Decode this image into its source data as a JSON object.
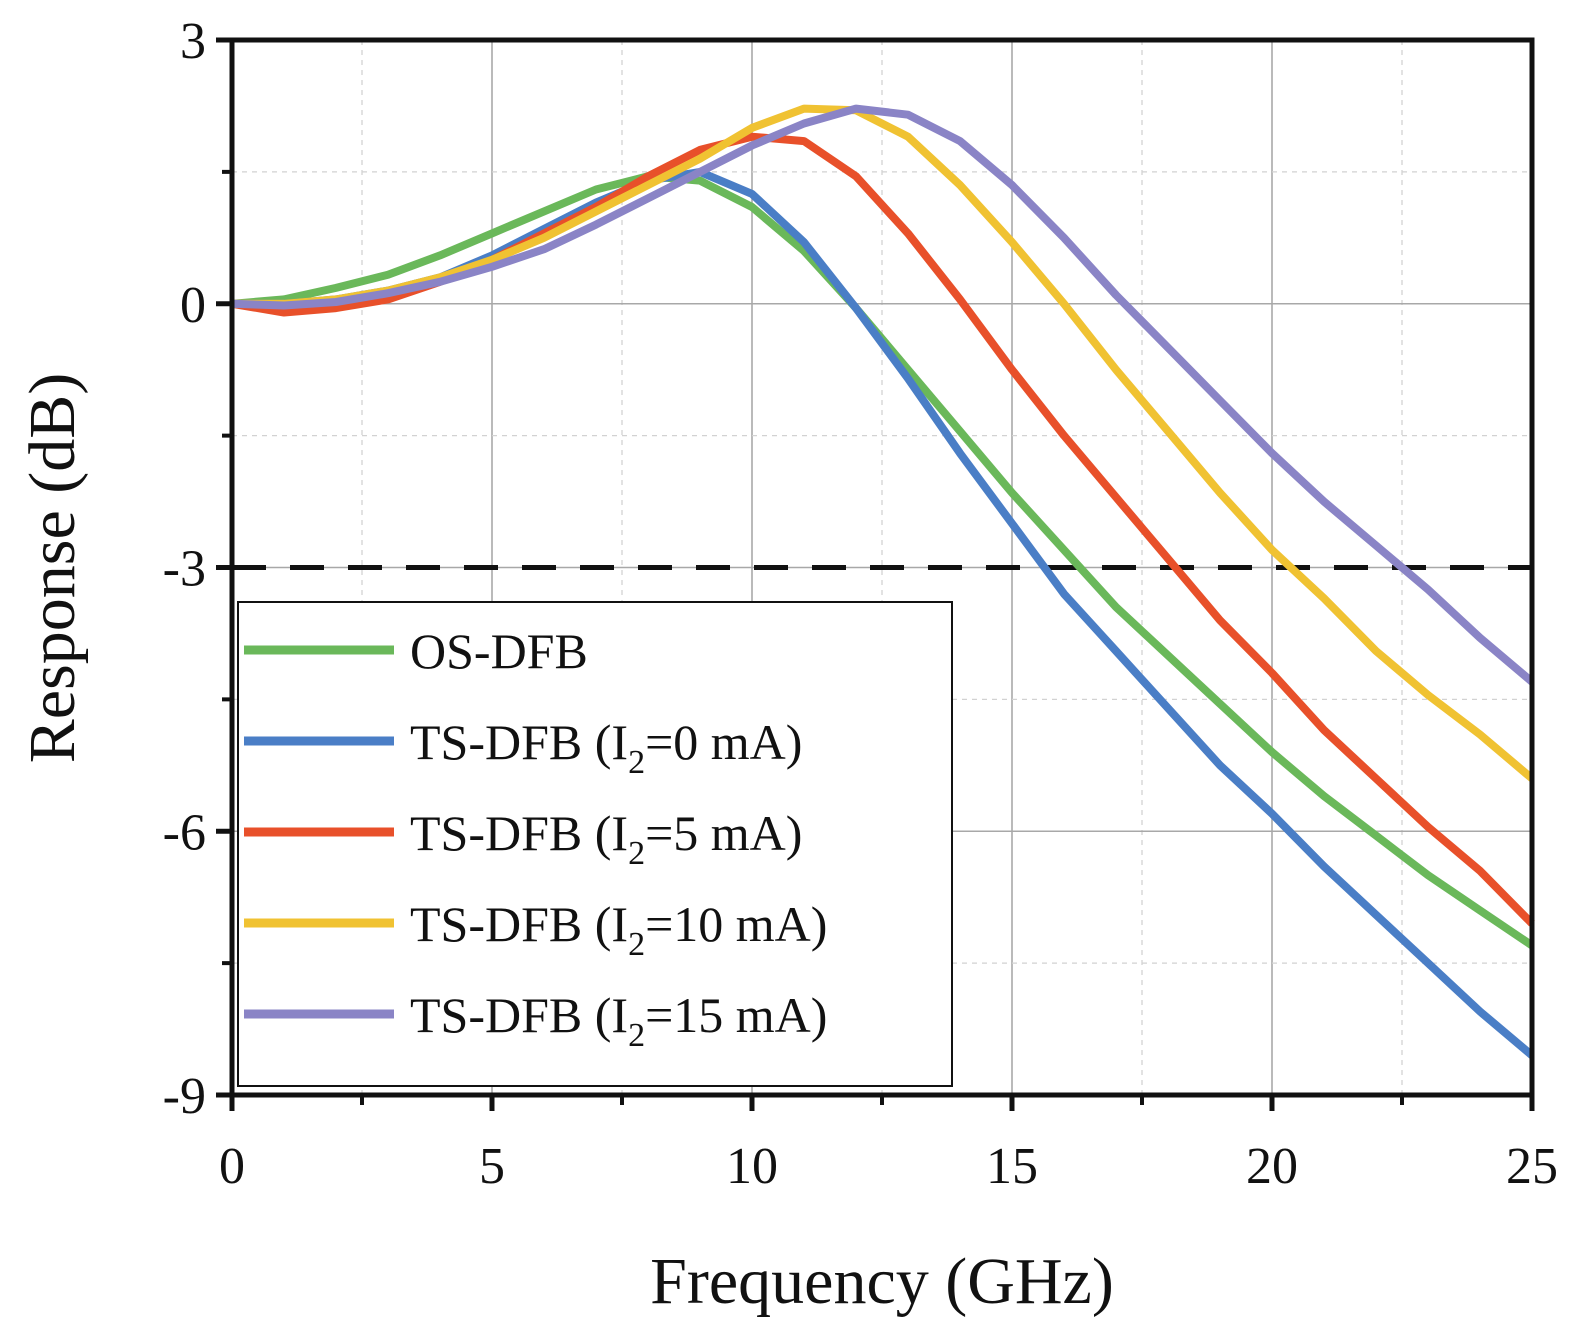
{
  "chart_data": {
    "type": "line",
    "title": "",
    "xlabel": "Frequency (GHz)",
    "ylabel": "Response (dB)",
    "xlim": [
      0,
      25
    ],
    "ylim": [
      -9,
      3
    ],
    "x_ticks": [
      0,
      5,
      10,
      15,
      20,
      25
    ],
    "y_ticks": [
      3,
      0,
      -3,
      -6,
      -9
    ],
    "x_tick_labels": [
      "0",
      "5",
      "10",
      "15",
      "20",
      "25"
    ],
    "y_tick_labels": [
      "3",
      "0",
      "-3",
      "-6",
      "-9"
    ],
    "grid": true,
    "reference_line": {
      "y": -3,
      "style": "dashed",
      "color": "#111111"
    },
    "legend": {
      "placement": "bottom-left",
      "entries": [
        {
          "main": "OS-DFB",
          "sub": "",
          "tail": ""
        },
        {
          "main": "TS-DFB (I",
          "sub": "2",
          "tail": "=0 mA)"
        },
        {
          "main": "TS-DFB (I",
          "sub": "2",
          "tail": "=5 mA)"
        },
        {
          "main": "TS-DFB (I",
          "sub": "2",
          "tail": "=10 mA)"
        },
        {
          "main": "TS-DFB (I",
          "sub": "2",
          "tail": "=15 mA)"
        }
      ]
    },
    "x": [
      0,
      1,
      2,
      3,
      4,
      5,
      6,
      7,
      8,
      9,
      10,
      11,
      12,
      13,
      14,
      15,
      16,
      17,
      18,
      19,
      20,
      21,
      22,
      23,
      24,
      25
    ],
    "series": [
      {
        "name": "OS-DFB",
        "color": "#6ab85a",
        "values": [
          0,
          0.05,
          0.18,
          0.33,
          0.55,
          0.8,
          1.05,
          1.3,
          1.45,
          1.4,
          1.1,
          0.6,
          -0.05,
          -0.75,
          -1.45,
          -2.15,
          -2.8,
          -3.45,
          -4.0,
          -4.55,
          -5.1,
          -5.6,
          -6.05,
          -6.5,
          -6.9,
          -7.3
        ]
      },
      {
        "name": "TS-DFB (I2=0 mA)",
        "color": "#4a7ec6",
        "values": [
          0,
          0,
          0.05,
          0.15,
          0.3,
          0.55,
          0.85,
          1.15,
          1.4,
          1.5,
          1.25,
          0.7,
          -0.05,
          -0.85,
          -1.7,
          -2.5,
          -3.3,
          -3.95,
          -4.6,
          -5.25,
          -5.8,
          -6.4,
          -6.95,
          -7.5,
          -8.05,
          -8.55
        ]
      },
      {
        "name": "TS-DFB (I2=5 mA)",
        "color": "#e8502a",
        "values": [
          0,
          -0.1,
          -0.05,
          0.05,
          0.25,
          0.5,
          0.8,
          1.1,
          1.45,
          1.75,
          1.9,
          1.85,
          1.45,
          0.8,
          0.05,
          -0.75,
          -1.5,
          -2.2,
          -2.9,
          -3.6,
          -4.2,
          -4.85,
          -5.4,
          -5.95,
          -6.45,
          -7.05
        ]
      },
      {
        "name": "TS-DFB (I2=10 mA)",
        "color": "#f0c232",
        "values": [
          0,
          0,
          0.05,
          0.15,
          0.3,
          0.5,
          0.75,
          1.05,
          1.35,
          1.65,
          2.0,
          2.22,
          2.2,
          1.9,
          1.35,
          0.7,
          0.0,
          -0.75,
          -1.45,
          -2.15,
          -2.8,
          -3.35,
          -3.95,
          -4.45,
          -4.9,
          -5.4
        ]
      },
      {
        "name": "TS-DFB (I2=15 mA)",
        "color": "#8a84c6",
        "values": [
          0,
          -0.02,
          0.02,
          0.12,
          0.25,
          0.42,
          0.62,
          0.9,
          1.2,
          1.5,
          1.8,
          2.05,
          2.22,
          2.15,
          1.85,
          1.35,
          0.75,
          0.1,
          -0.5,
          -1.1,
          -1.7,
          -2.25,
          -2.75,
          -3.25,
          -3.8,
          -4.3
        ]
      }
    ]
  }
}
